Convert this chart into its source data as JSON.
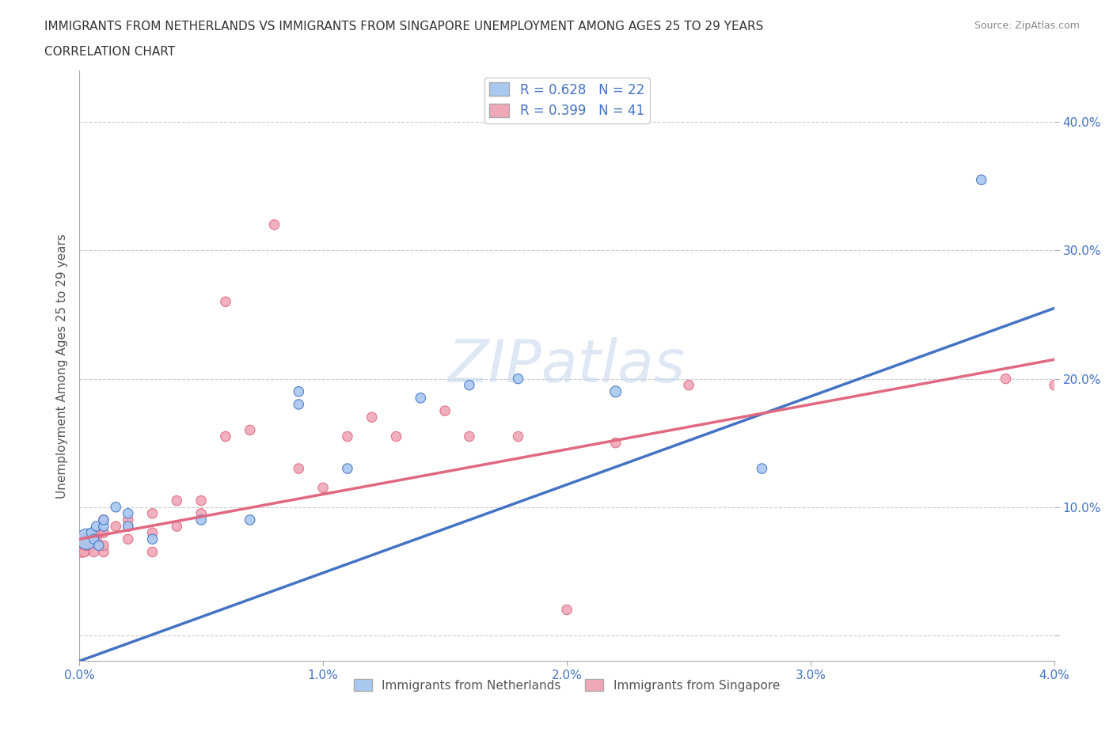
{
  "title_line1": "IMMIGRANTS FROM NETHERLANDS VS IMMIGRANTS FROM SINGAPORE UNEMPLOYMENT AMONG AGES 25 TO 29 YEARS",
  "title_line2": "CORRELATION CHART",
  "source": "Source: ZipAtlas.com",
  "ylabel": "Unemployment Among Ages 25 to 29 years",
  "xlim": [
    0.0,
    0.04
  ],
  "ylim": [
    -0.02,
    0.44
  ],
  "xticks": [
    0.0,
    0.01,
    0.02,
    0.03,
    0.04
  ],
  "yticks": [
    0.0,
    0.1,
    0.2,
    0.3,
    0.4
  ],
  "xtick_labels": [
    "0.0%",
    "1.0%",
    "2.0%",
    "3.0%",
    "4.0%"
  ],
  "ytick_labels": [
    "",
    "10.0%",
    "20.0%",
    "30.0%",
    "40.0%"
  ],
  "netherlands_R": 0.628,
  "netherlands_N": 22,
  "singapore_R": 0.399,
  "singapore_N": 41,
  "netherlands_color": "#a8c8f0",
  "singapore_color": "#f0a8b8",
  "netherlands_line_color": "#4472c4",
  "singapore_line_color": "#e06880",
  "watermark": "ZIPatlas",
  "legend_entries": [
    "Immigrants from Netherlands",
    "Immigrants from Singapore"
  ],
  "netherlands_x": [
    0.0003,
    0.0005,
    0.0006,
    0.0007,
    0.0008,
    0.001,
    0.001,
    0.0015,
    0.002,
    0.002,
    0.003,
    0.005,
    0.007,
    0.009,
    0.009,
    0.011,
    0.014,
    0.016,
    0.018,
    0.022,
    0.028,
    0.037
  ],
  "netherlands_y": [
    0.075,
    0.08,
    0.075,
    0.085,
    0.07,
    0.085,
    0.09,
    0.1,
    0.085,
    0.095,
    0.075,
    0.09,
    0.09,
    0.18,
    0.19,
    0.13,
    0.185,
    0.195,
    0.2,
    0.19,
    0.13,
    0.355
  ],
  "netherlands_sizes": [
    350,
    80,
    80,
    80,
    80,
    80,
    80,
    80,
    80,
    80,
    80,
    80,
    80,
    80,
    80,
    80,
    80,
    80,
    80,
    100,
    80,
    80
  ],
  "singapore_x": [
    0.0001,
    0.0002,
    0.0002,
    0.0003,
    0.0004,
    0.0005,
    0.0006,
    0.0007,
    0.0008,
    0.001,
    0.001,
    0.001,
    0.001,
    0.0015,
    0.002,
    0.002,
    0.002,
    0.003,
    0.003,
    0.003,
    0.004,
    0.004,
    0.005,
    0.005,
    0.006,
    0.006,
    0.007,
    0.008,
    0.009,
    0.01,
    0.011,
    0.012,
    0.013,
    0.015,
    0.016,
    0.018,
    0.02,
    0.022,
    0.025,
    0.038,
    0.04
  ],
  "singapore_y": [
    0.07,
    0.07,
    0.065,
    0.07,
    0.075,
    0.07,
    0.065,
    0.075,
    0.08,
    0.065,
    0.07,
    0.08,
    0.09,
    0.085,
    0.075,
    0.085,
    0.09,
    0.065,
    0.08,
    0.095,
    0.085,
    0.105,
    0.095,
    0.105,
    0.155,
    0.26,
    0.16,
    0.32,
    0.13,
    0.115,
    0.155,
    0.17,
    0.155,
    0.175,
    0.155,
    0.155,
    0.02,
    0.15,
    0.195,
    0.2,
    0.195
  ],
  "singapore_sizes": [
    450,
    80,
    80,
    80,
    80,
    80,
    80,
    80,
    80,
    80,
    80,
    80,
    80,
    80,
    80,
    80,
    80,
    80,
    80,
    80,
    80,
    80,
    80,
    80,
    80,
    80,
    80,
    80,
    80,
    80,
    80,
    80,
    80,
    80,
    80,
    80,
    80,
    80,
    80,
    80,
    80
  ],
  "nl_line_x0": 0.0,
  "nl_line_y0": -0.02,
  "nl_line_x1": 0.04,
  "nl_line_y1": 0.255,
  "sg_line_x0": 0.0,
  "sg_line_y0": 0.075,
  "sg_line_x1": 0.04,
  "sg_line_y1": 0.215
}
